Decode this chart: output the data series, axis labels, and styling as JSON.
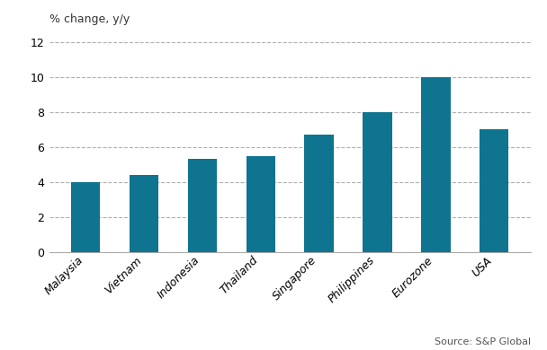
{
  "categories": [
    "Malaysia",
    "Vietnam",
    "Indonesia",
    "Thailand",
    "Singapore",
    "Philippines",
    "Eurozone",
    "USA"
  ],
  "values": [
    4.0,
    4.4,
    5.3,
    5.5,
    6.7,
    8.0,
    10.0,
    7.0
  ],
  "bar_color": "#0e7490",
  "top_label": "% change, y/y",
  "ylim": [
    0,
    12
  ],
  "yticks": [
    0,
    2,
    4,
    6,
    8,
    10,
    12
  ],
  "source_text": "Source: S&P Global",
  "background_color": "#ffffff",
  "grid_color": "#b0b0b0",
  "bar_width": 0.5
}
